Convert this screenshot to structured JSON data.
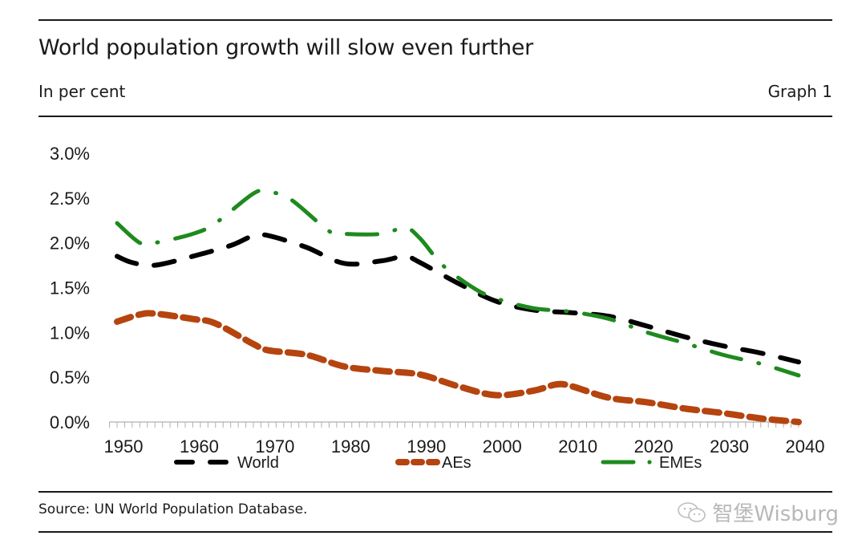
{
  "header": {
    "title": "World population growth will slow even further",
    "subtitle": "In per cent",
    "graph_number": "Graph 1"
  },
  "footer": {
    "source": "Source: UN World Population Database.",
    "watermark": "智堡Wisburg"
  },
  "chart_data": {
    "type": "line",
    "title": "World population growth will slow even further",
    "xlabel": "",
    "ylabel": "In per cent",
    "xlim": [
      1950,
      2040
    ],
    "ylim": [
      0,
      3.0
    ],
    "x_ticks": [
      1950,
      1960,
      1970,
      1980,
      1990,
      2000,
      2010,
      2020,
      2030,
      2040
    ],
    "x_tick_labels": [
      "1950",
      "1960",
      "1970",
      "1980",
      "1990",
      "2000",
      "2010",
      "2020",
      "2030",
      "2040"
    ],
    "y_ticks": [
      0,
      0.5,
      1.0,
      1.5,
      2.0,
      2.5,
      3.0
    ],
    "y_tick_labels": [
      "0.0%",
      "0.5%",
      "1.0%",
      "1.5%",
      "2.0%",
      "2.5%",
      "3.0%"
    ],
    "grid": false,
    "legend_position": "bottom",
    "series": [
      {
        "name": "World",
        "color": "#000000",
        "style": "dashed",
        "x": [
          1950,
          1952,
          1955,
          1960,
          1965,
          1968,
          1970,
          1975,
          1980,
          1985,
          1988,
          1990,
          1995,
          2000,
          2005,
          2010,
          2015,
          2020,
          2025,
          2030,
          2035,
          2040
        ],
        "values": [
          1.85,
          1.78,
          1.75,
          1.85,
          1.97,
          2.08,
          2.08,
          1.95,
          1.77,
          1.8,
          1.85,
          1.78,
          1.55,
          1.35,
          1.25,
          1.22,
          1.18,
          1.07,
          0.95,
          0.85,
          0.77,
          0.67
        ]
      },
      {
        "name": "AEs",
        "color": "#b5440f",
        "style": "short-dashed",
        "x": [
          1950,
          1953,
          1955,
          1960,
          1963,
          1968,
          1970,
          1975,
          1980,
          1985,
          1990,
          1995,
          2000,
          2005,
          2008,
          2010,
          2015,
          2020,
          2025,
          2030,
          2035,
          2040
        ],
        "values": [
          1.12,
          1.2,
          1.21,
          1.15,
          1.1,
          0.87,
          0.8,
          0.75,
          0.62,
          0.57,
          0.53,
          0.4,
          0.3,
          0.35,
          0.42,
          0.4,
          0.27,
          0.22,
          0.15,
          0.1,
          0.04,
          0.0
        ]
      },
      {
        "name": "EMEs",
        "color": "#1e8a1e",
        "style": "dash-dot",
        "x": [
          1950,
          1953,
          1955,
          1960,
          1963,
          1968,
          1970,
          1973,
          1978,
          1980,
          1985,
          1988,
          1990,
          1993,
          1997,
          2000,
          2005,
          2010,
          2015,
          2020,
          2025,
          2030,
          2035,
          2040
        ],
        "values": [
          2.22,
          2.0,
          2.0,
          2.1,
          2.22,
          2.55,
          2.57,
          2.48,
          2.13,
          2.1,
          2.1,
          2.17,
          2.05,
          1.75,
          1.5,
          1.38,
          1.27,
          1.23,
          1.15,
          1.0,
          0.88,
          0.75,
          0.65,
          0.52
        ]
      }
    ]
  }
}
